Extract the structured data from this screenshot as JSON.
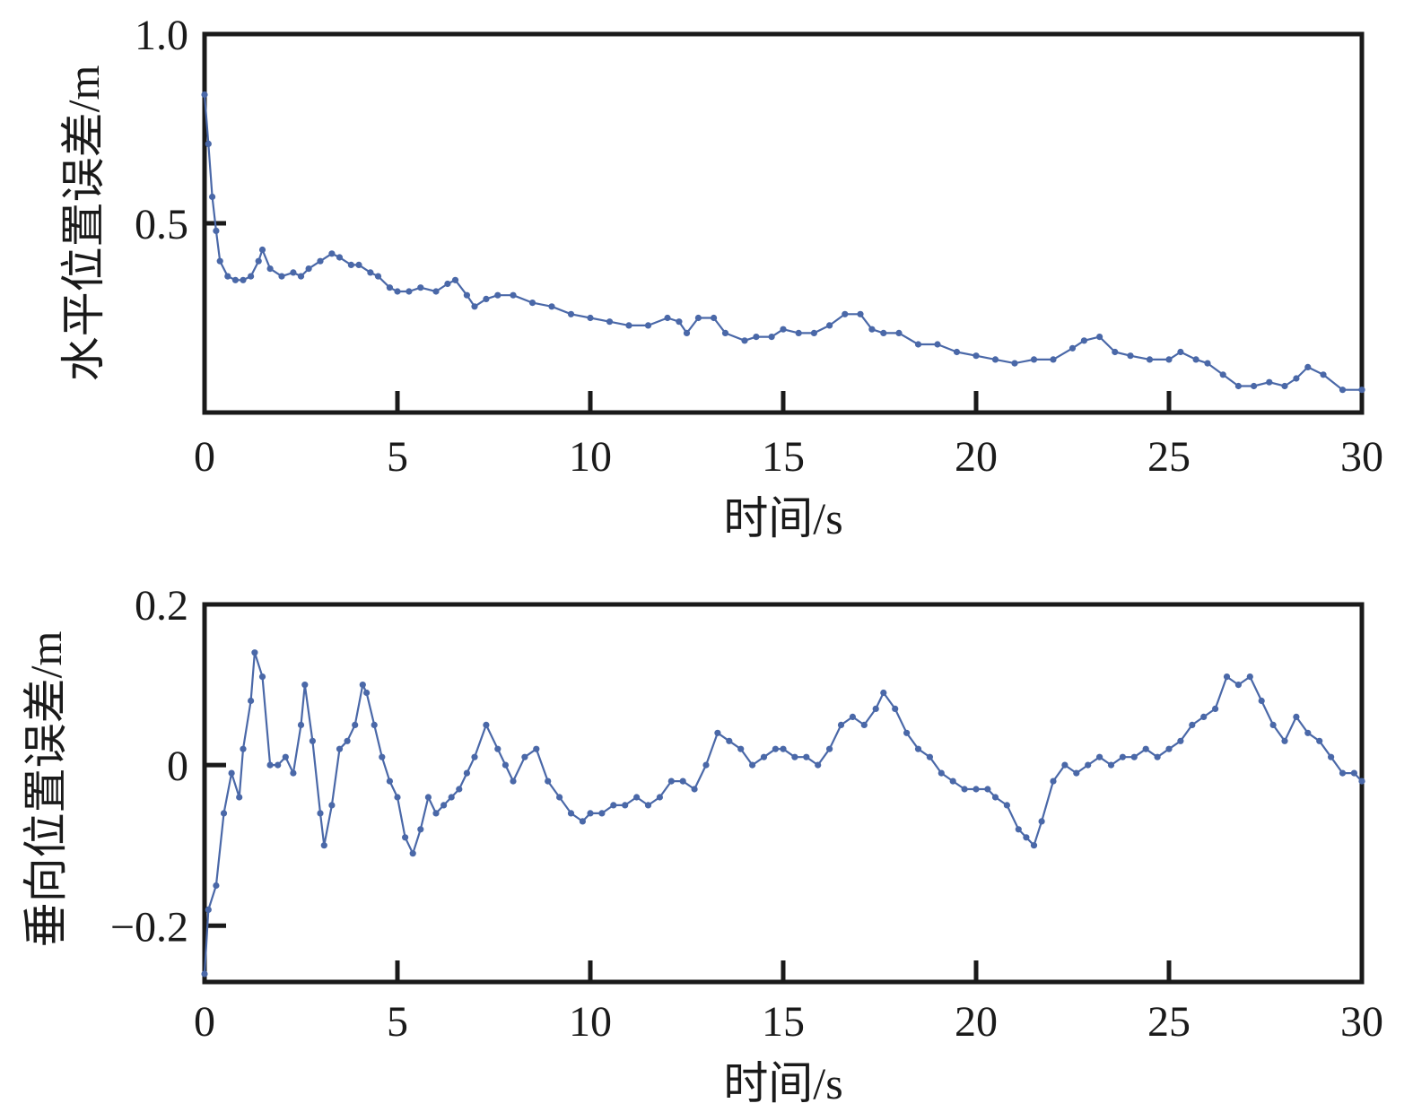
{
  "chart_data": [
    {
      "type": "line",
      "xlabel": "时间/s",
      "ylabel": "水平位置误差/m",
      "xlim": [
        0,
        30
      ],
      "ylim": [
        0.0,
        1.0
      ],
      "x_tick_labels": [
        "0",
        "5",
        "10",
        "15",
        "20",
        "25",
        "30"
      ],
      "x_ticks": [
        0,
        5,
        10,
        15,
        20,
        25,
        30
      ],
      "y_tick_labels": [
        "0.5",
        "1.0"
      ],
      "y_ticks": [
        0.5,
        1.0
      ],
      "grid": false,
      "series_color": "#4a68a8",
      "series": [
        {
          "x": [
            0.0,
            0.1,
            0.2,
            0.3,
            0.4,
            0.6,
            0.8,
            1.0,
            1.2,
            1.4,
            1.5,
            1.7,
            2.0,
            2.3,
            2.5,
            2.7,
            3.0,
            3.3,
            3.5,
            3.8,
            4.0,
            4.3,
            4.5,
            4.8,
            5.0,
            5.3,
            5.6,
            6.0,
            6.3,
            6.5,
            6.8,
            7.0,
            7.3,
            7.6,
            8.0,
            8.5,
            9.0,
            9.5,
            10.0,
            10.5,
            11.0,
            11.5,
            12.0,
            12.3,
            12.5,
            12.8,
            13.2,
            13.5,
            14.0,
            14.3,
            14.7,
            15.0,
            15.4,
            15.8,
            16.2,
            16.6,
            17.0,
            17.3,
            17.6,
            18.0,
            18.5,
            19.0,
            19.5,
            20.0,
            20.5,
            21.0,
            21.5,
            22.0,
            22.5,
            22.8,
            23.2,
            23.6,
            24.0,
            24.5,
            25.0,
            25.3,
            25.7,
            26.0,
            26.4,
            26.8,
            27.2,
            27.6,
            28.0,
            28.3,
            28.6,
            29.0,
            29.5,
            30.0
          ],
          "y": [
            0.84,
            0.71,
            0.57,
            0.48,
            0.4,
            0.36,
            0.35,
            0.35,
            0.36,
            0.4,
            0.43,
            0.38,
            0.36,
            0.37,
            0.36,
            0.38,
            0.4,
            0.42,
            0.41,
            0.39,
            0.39,
            0.37,
            0.36,
            0.33,
            0.32,
            0.32,
            0.33,
            0.32,
            0.34,
            0.35,
            0.31,
            0.28,
            0.3,
            0.31,
            0.31,
            0.29,
            0.28,
            0.26,
            0.25,
            0.24,
            0.23,
            0.23,
            0.25,
            0.24,
            0.21,
            0.25,
            0.25,
            0.21,
            0.19,
            0.2,
            0.2,
            0.22,
            0.21,
            0.21,
            0.23,
            0.26,
            0.26,
            0.22,
            0.21,
            0.21,
            0.18,
            0.18,
            0.16,
            0.15,
            0.14,
            0.13,
            0.14,
            0.14,
            0.17,
            0.19,
            0.2,
            0.16,
            0.15,
            0.14,
            0.14,
            0.16,
            0.14,
            0.13,
            0.1,
            0.07,
            0.07,
            0.08,
            0.07,
            0.09,
            0.12,
            0.1,
            0.06,
            0.06
          ]
        }
      ]
    },
    {
      "type": "line",
      "xlabel": "时间/s",
      "ylabel": "垂向位置误差/m",
      "xlim": [
        0,
        30
      ],
      "ylim": [
        -0.27,
        0.2
      ],
      "x_tick_labels": [
        "0",
        "5",
        "10",
        "15",
        "20",
        "25",
        "30"
      ],
      "x_ticks": [
        0,
        5,
        10,
        15,
        20,
        25,
        30
      ],
      "y_tick_labels": [
        "−0.2",
        "0",
        "0.2"
      ],
      "y_ticks": [
        -0.2,
        0,
        0.2
      ],
      "grid": false,
      "series_color": "#4a68a8",
      "series": [
        {
          "x": [
            0.0,
            0.1,
            0.3,
            0.5,
            0.7,
            0.9,
            1.0,
            1.2,
            1.3,
            1.5,
            1.7,
            1.9,
            2.1,
            2.3,
            2.5,
            2.6,
            2.8,
            3.0,
            3.1,
            3.3,
            3.5,
            3.7,
            3.9,
            4.1,
            4.2,
            4.4,
            4.6,
            4.8,
            5.0,
            5.2,
            5.4,
            5.6,
            5.8,
            6.0,
            6.2,
            6.4,
            6.6,
            6.8,
            7.0,
            7.3,
            7.6,
            7.8,
            8.0,
            8.3,
            8.6,
            8.9,
            9.2,
            9.5,
            9.8,
            10.0,
            10.3,
            10.6,
            10.9,
            11.2,
            11.5,
            11.8,
            12.1,
            12.4,
            12.7,
            13.0,
            13.3,
            13.6,
            13.9,
            14.2,
            14.5,
            14.8,
            15.0,
            15.3,
            15.6,
            15.9,
            16.2,
            16.5,
            16.8,
            17.1,
            17.4,
            17.6,
            17.9,
            18.2,
            18.5,
            18.8,
            19.1,
            19.4,
            19.7,
            20.0,
            20.3,
            20.5,
            20.8,
            21.1,
            21.3,
            21.5,
            21.7,
            22.0,
            22.3,
            22.6,
            22.9,
            23.2,
            23.5,
            23.8,
            24.1,
            24.4,
            24.7,
            25.0,
            25.3,
            25.6,
            25.9,
            26.2,
            26.5,
            26.8,
            27.1,
            27.4,
            27.7,
            28.0,
            28.3,
            28.6,
            28.9,
            29.2,
            29.5,
            29.8,
            30.0
          ],
          "y": [
            -0.26,
            -0.18,
            -0.15,
            -0.06,
            -0.01,
            -0.04,
            0.02,
            0.08,
            0.14,
            0.11,
            0.0,
            0.0,
            0.01,
            -0.01,
            0.05,
            0.1,
            0.03,
            -0.06,
            -0.1,
            -0.05,
            0.02,
            0.03,
            0.05,
            0.1,
            0.09,
            0.05,
            0.01,
            -0.02,
            -0.04,
            -0.09,
            -0.11,
            -0.08,
            -0.04,
            -0.06,
            -0.05,
            -0.04,
            -0.03,
            -0.01,
            0.01,
            0.05,
            0.02,
            0.0,
            -0.02,
            0.01,
            0.02,
            -0.02,
            -0.04,
            -0.06,
            -0.07,
            -0.06,
            -0.06,
            -0.05,
            -0.05,
            -0.04,
            -0.05,
            -0.04,
            -0.02,
            -0.02,
            -0.03,
            0.0,
            0.04,
            0.03,
            0.02,
            0.0,
            0.01,
            0.02,
            0.02,
            0.01,
            0.01,
            0.0,
            0.02,
            0.05,
            0.06,
            0.05,
            0.07,
            0.09,
            0.07,
            0.04,
            0.02,
            0.01,
            -0.01,
            -0.02,
            -0.03,
            -0.03,
            -0.03,
            -0.04,
            -0.05,
            -0.08,
            -0.09,
            -0.1,
            -0.07,
            -0.02,
            0.0,
            -0.01,
            0.0,
            0.01,
            0.0,
            0.01,
            0.01,
            0.02,
            0.01,
            0.02,
            0.03,
            0.05,
            0.06,
            0.07,
            0.11,
            0.1,
            0.11,
            0.08,
            0.05,
            0.03,
            0.06,
            0.04,
            0.03,
            0.01,
            -0.01,
            -0.01,
            -0.02
          ]
        }
      ]
    }
  ]
}
